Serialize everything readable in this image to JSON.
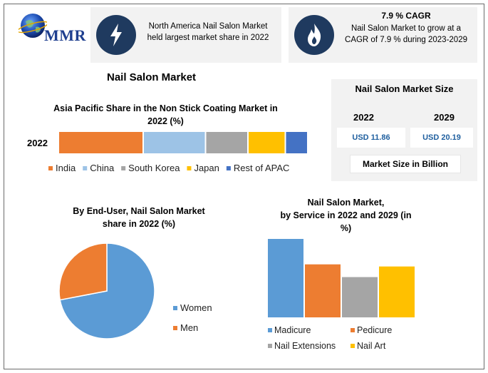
{
  "logo": {
    "text": "MMR"
  },
  "info_left": {
    "text_line1": "North America Nail Salon Market",
    "text_line2": "held largest market share in 2022",
    "icon": "lightning-icon"
  },
  "info_right": {
    "title": "7.9 % CAGR",
    "text_line1": "Nail Salon Market to grow at a",
    "text_line2": "CAGR of 7.9 % during 2023-2029",
    "icon": "flame-icon"
  },
  "main_title": "Nail Salon Market",
  "market_size": {
    "title": "Nail Salon Market Size",
    "year_a": "2022",
    "year_b": "2029",
    "value_a": "USD 11.86",
    "value_b": "USD 20.19",
    "footer": "Market Size in Billion"
  },
  "colors": {
    "blue": "#5b9bd5",
    "orange": "#ed7d31",
    "gray": "#a5a5a5",
    "yellow": "#ffc000",
    "dark_blue": "#4472c4",
    "light_blue": "#9dc3e6",
    "icon_bg": "#1f3a5f"
  },
  "chart_data": [
    {
      "type": "bar",
      "orientation": "horizontal-stacked",
      "title_line1": "Asia Pacific Share in the Non Stick Coating Market in",
      "title_line2": "2022 (%)",
      "categories": [
        "2022"
      ],
      "series": [
        {
          "name": "India",
          "values": [
            34
          ]
        },
        {
          "name": "China",
          "values": [
            25
          ]
        },
        {
          "name": "South Korea",
          "values": [
            17
          ]
        },
        {
          "name": "Japan",
          "values": [
            15
          ]
        },
        {
          "name": "Rest of APAC",
          "values": [
            9
          ]
        }
      ],
      "legend": "bottom"
    },
    {
      "type": "pie",
      "title_line1": "By End-User, Nail Salon Market",
      "title_line2": "share in 2022  (%)",
      "slices": [
        {
          "name": "Women",
          "value": 72
        },
        {
          "name": "Men",
          "value": 28
        }
      ],
      "legend": "right"
    },
    {
      "type": "bar",
      "title_line1": "Nail Salon Market,",
      "title_line2": "by Service in 2022 and 2029 (in",
      "title_line3": "%)",
      "series": [
        {
          "name": "Madicure",
          "values": [
            37
          ]
        },
        {
          "name": "Pedicure",
          "values": [
            25
          ]
        },
        {
          "name": "Nail Extensions",
          "values": [
            19
          ]
        },
        {
          "name": "Nail Art",
          "values": [
            24
          ]
        }
      ],
      "legend": "bottom"
    }
  ]
}
